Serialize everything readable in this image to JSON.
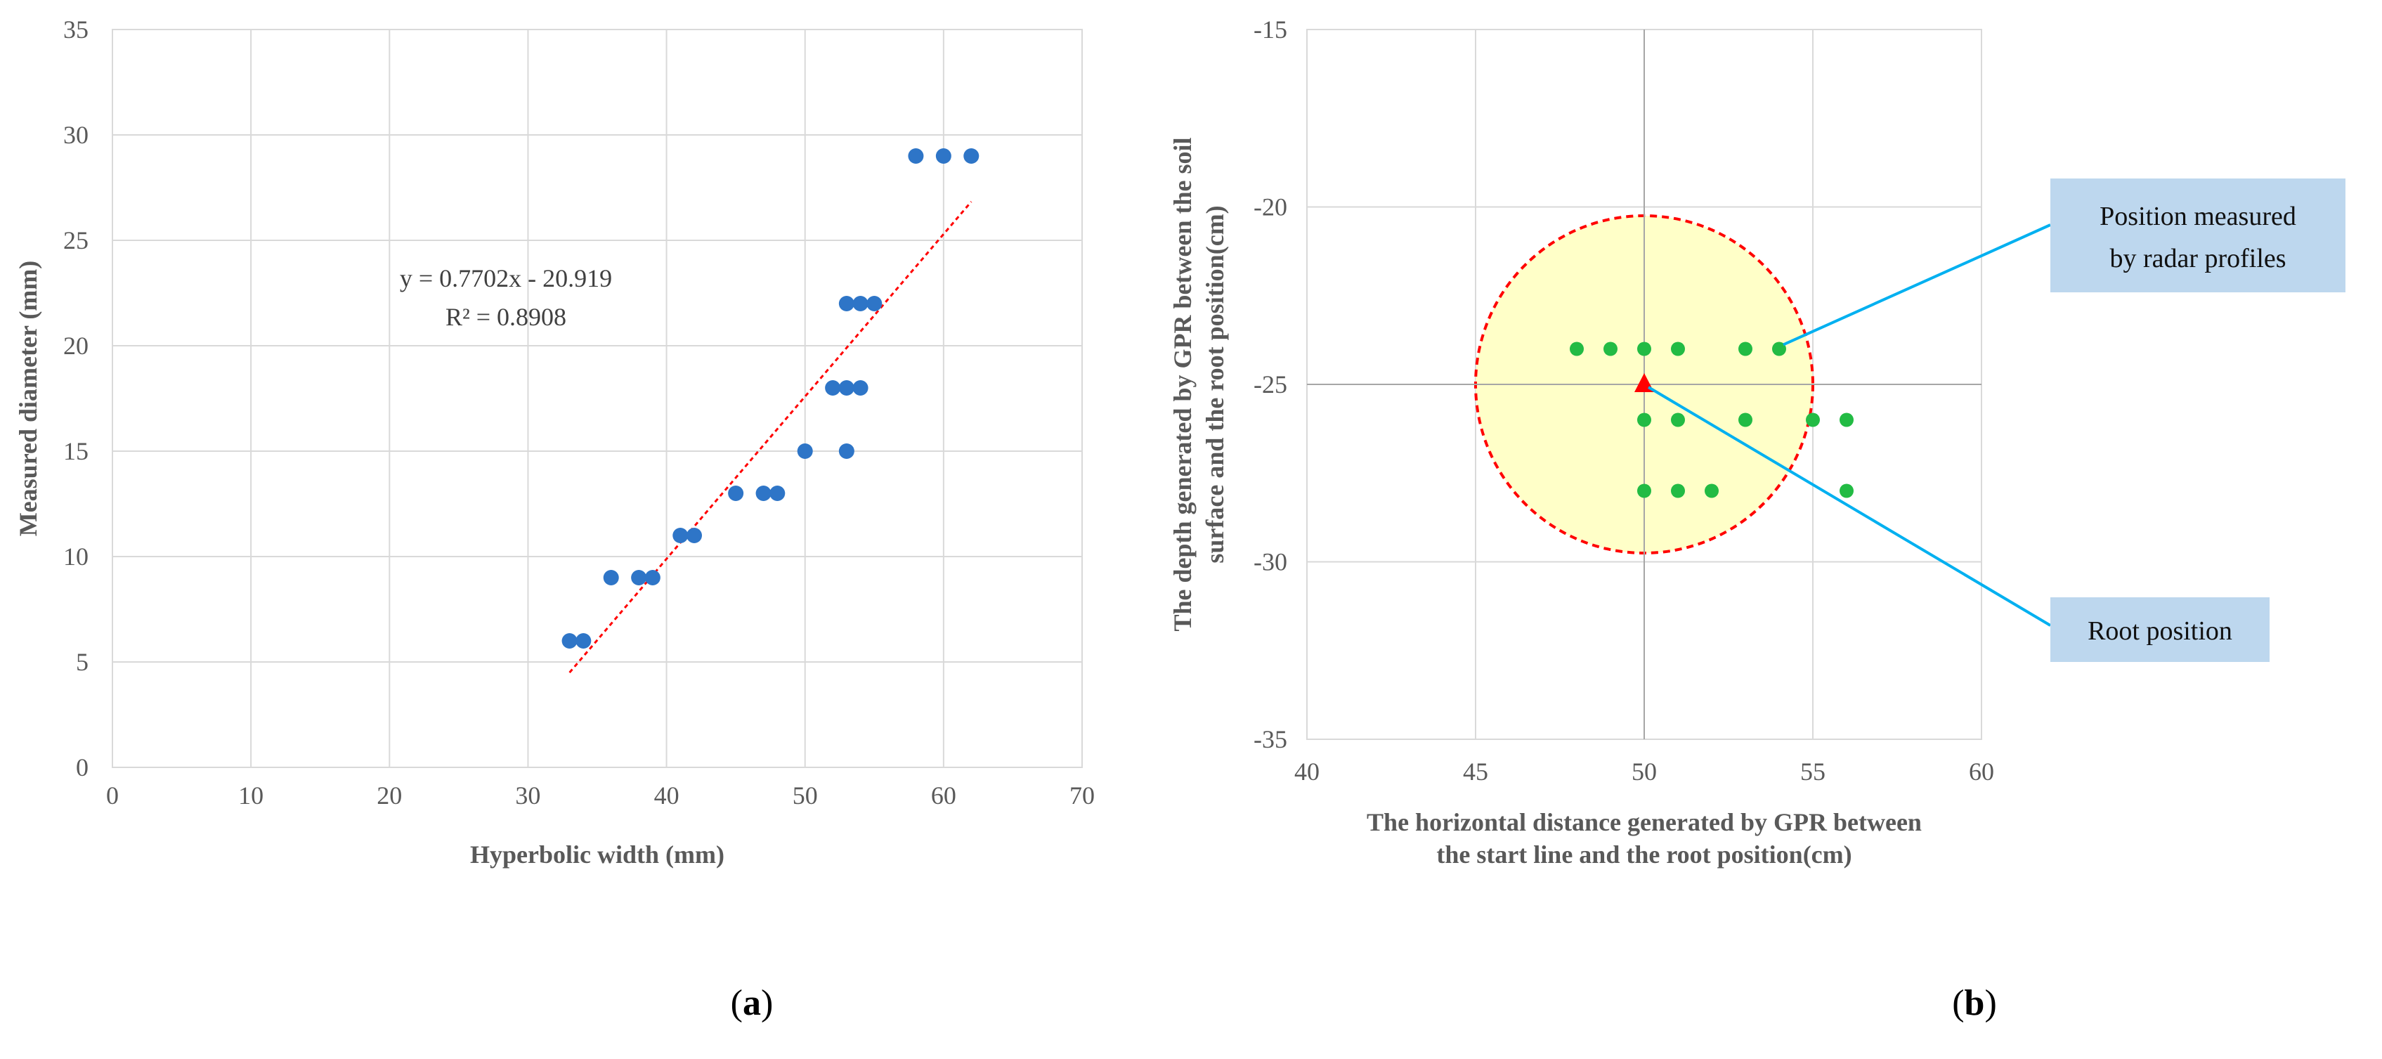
{
  "colors": {
    "points_a": "#2E75C7",
    "trendline": "#FF0000",
    "points_b": "#22BB44",
    "root_marker": "#FF0000",
    "circle_fill": "#FFFFC8",
    "circle_stroke": "#FF0000",
    "callout_fill": "#BDD7EE",
    "callout_line": "#00B0F0",
    "grid": "#D9D9D9",
    "axis_zero": "#A6A6A6"
  },
  "panel_a": {
    "label_open": "(",
    "label_letter": "a",
    "label_close": ")"
  },
  "panel_b": {
    "label_open": "(",
    "label_letter": "b",
    "label_close": ")",
    "callouts": [
      {
        "lines": [
          "Position measured",
          "by radar profiles"
        ]
      },
      {
        "lines": [
          "Root position"
        ]
      }
    ]
  },
  "chart_data": [
    {
      "type": "scatter",
      "title": "",
      "xlabel": "Hyperbolic width  (mm)",
      "ylabel": "Measured diameter  (mm)",
      "xlim": [
        0,
        70
      ],
      "ylim": [
        0,
        35
      ],
      "xticks": [
        0,
        10,
        20,
        30,
        40,
        50,
        60,
        70
      ],
      "yticks": [
        0,
        5,
        10,
        15,
        20,
        25,
        30,
        35
      ],
      "grid": true,
      "series": [
        {
          "name": "Measured",
          "points": [
            [
              33,
              6
            ],
            [
              34,
              6
            ],
            [
              36,
              9
            ],
            [
              38,
              9
            ],
            [
              39,
              9
            ],
            [
              41,
              11
            ],
            [
              42,
              11
            ],
            [
              45,
              13
            ],
            [
              47,
              13
            ],
            [
              48,
              13
            ],
            [
              50,
              15
            ],
            [
              53,
              15
            ],
            [
              52,
              18
            ],
            [
              53,
              18
            ],
            [
              54,
              18
            ],
            [
              53,
              22
            ],
            [
              54,
              22
            ],
            [
              55,
              22
            ],
            [
              58,
              29
            ],
            [
              60,
              29
            ],
            [
              62,
              29
            ]
          ]
        }
      ],
      "trendline": {
        "type": "linear",
        "slope": 0.7702,
        "intercept": -20.919,
        "x_range": [
          33,
          62
        ],
        "equation_label": "y = 0.7702x - 20.919",
        "r2_label": "R² = 0.8908"
      }
    },
    {
      "type": "scatter",
      "title": "",
      "xlabel_lines": [
        "The horizontal  distance generated by GPR between",
        "the start line and the root position(cm)"
      ],
      "ylabel_lines": [
        "The depth generated by GPR between the soil",
        "surface and the root position(cm)"
      ],
      "xlim": [
        40,
        60
      ],
      "ylim": [
        -35,
        -15
      ],
      "xticks": [
        40,
        45,
        50,
        55,
        60
      ],
      "yticks": [
        -35,
        -30,
        -25,
        -20,
        -15
      ],
      "grid": true,
      "series": [
        {
          "name": "Position measured by radar profiles",
          "points": [
            [
              48,
              -24
            ],
            [
              49,
              -24
            ],
            [
              50,
              -24
            ],
            [
              51,
              -24
            ],
            [
              53,
              -24
            ],
            [
              54,
              -24
            ],
            [
              50,
              -26
            ],
            [
              51,
              -26
            ],
            [
              53,
              -26
            ],
            [
              55,
              -26
            ],
            [
              56,
              -26
            ],
            [
              50,
              -28
            ],
            [
              51,
              -28
            ],
            [
              52,
              -28
            ],
            [
              56,
              -28
            ]
          ]
        },
        {
          "name": "Root position",
          "points": [
            [
              50,
              -25
            ]
          ]
        }
      ],
      "region": {
        "shape": "circle",
        "center": [
          50,
          -25
        ],
        "radius": 5
      }
    }
  ]
}
